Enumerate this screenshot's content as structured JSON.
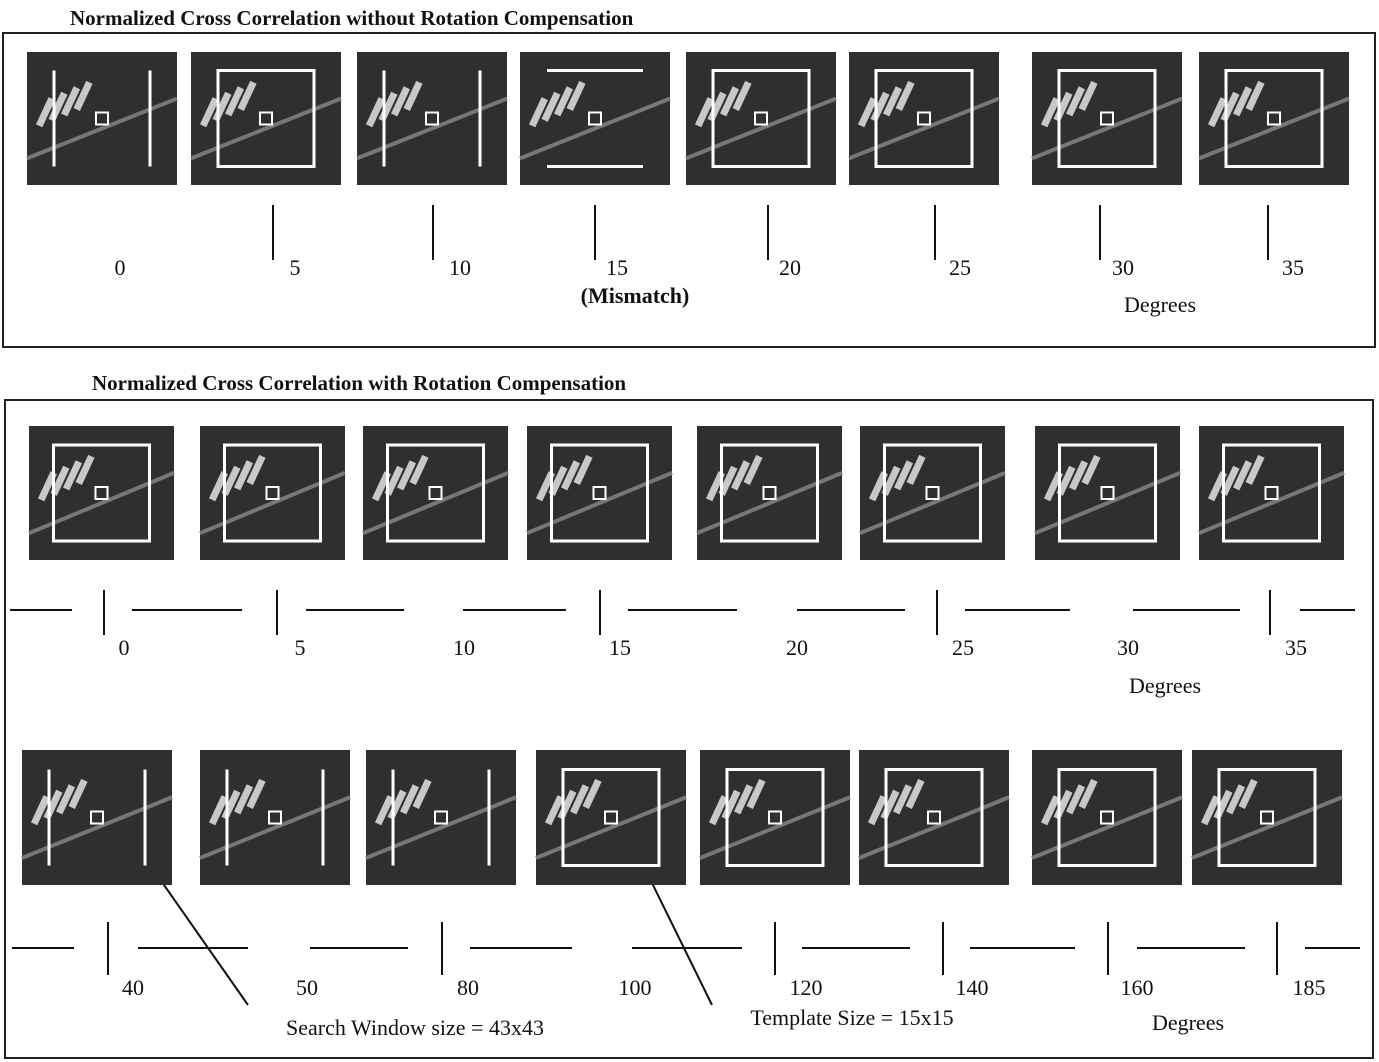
{
  "panels": [
    {
      "title": "Normalized Cross Correlation without Rotation Compensation",
      "rows": [
        {
          "labels": [
            "0",
            "5",
            "10",
            "15",
            "20",
            "25",
            "30",
            "35"
          ],
          "note": "(Mismatch)",
          "unit": "Degrees"
        }
      ]
    },
    {
      "title": "Normalized Cross Correlation with Rotation Compensation",
      "rows": [
        {
          "labels": [
            "0",
            "5",
            "10",
            "15",
            "20",
            "25",
            "30",
            "35"
          ],
          "unit": "Degrees"
        },
        {
          "labels": [
            "40",
            "50",
            "80",
            "100",
            "120",
            "140",
            "160",
            "185"
          ],
          "unit": "Degrees"
        }
      ]
    }
  ],
  "annotations": [
    "Search Window size = 43x43",
    "Template Size = 15x15"
  ]
}
